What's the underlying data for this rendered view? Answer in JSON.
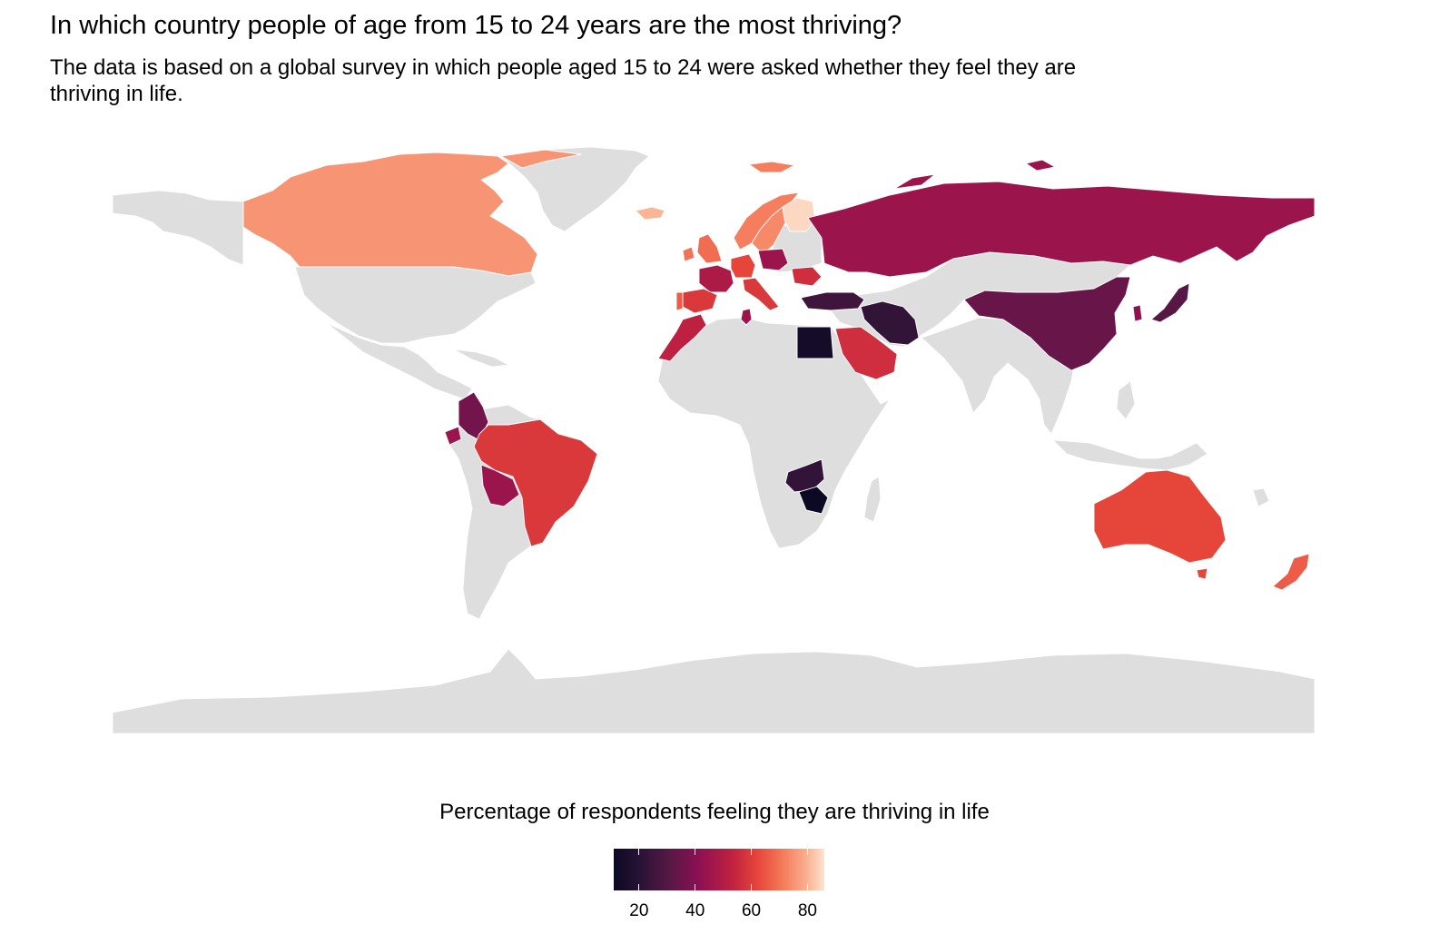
{
  "title": "In which country people of age from 15 to 24 years are the most thriving?",
  "subtitle": "The data is based on a global survey in which people aged 15 to 24 were asked whether they feel they are thriving in life.",
  "legend": {
    "title": "Percentage of respondents feeling they are thriving in life",
    "min": 11,
    "max": 86,
    "ticks": [
      "20",
      "40",
      "60",
      "80"
    ]
  },
  "colors": {
    "no_data": "#dedede",
    "border": "#ffffff",
    "scale": [
      "#0b0924",
      "#2a1336",
      "#561845",
      "#8a1052",
      "#c0213f",
      "#e6443a",
      "#f47a59",
      "#f9ad8d",
      "#fde3cf"
    ]
  },
  "map_data": {
    "type": "choropleth",
    "regions": [
      {
        "name": "Canada",
        "value": 72
      },
      {
        "name": "Greenland",
        "value": 72
      },
      {
        "name": "Iceland",
        "value": 78
      },
      {
        "name": "Svalbard",
        "value": 68
      },
      {
        "name": "Norway",
        "value": 68
      },
      {
        "name": "Sweden",
        "value": 70
      },
      {
        "name": "Finland",
        "value": 84
      },
      {
        "name": "United Kingdom",
        "value": 65
      },
      {
        "name": "Ireland",
        "value": 66
      },
      {
        "name": "France",
        "value": 45
      },
      {
        "name": "Spain",
        "value": 55
      },
      {
        "name": "Portugal",
        "value": 62
      },
      {
        "name": "Germany",
        "value": 58
      },
      {
        "name": "Poland",
        "value": 42
      },
      {
        "name": "Italy",
        "value": 55
      },
      {
        "name": "Romania",
        "value": 52
      },
      {
        "name": "Russia",
        "value": 42
      },
      {
        "name": "Turkey",
        "value": 25
      },
      {
        "name": "Iran",
        "value": 22
      },
      {
        "name": "Saudi Arabia",
        "value": 52
      },
      {
        "name": "Egypt",
        "value": 14
      },
      {
        "name": "Morocco",
        "value": 48
      },
      {
        "name": "Tunisia",
        "value": 42
      },
      {
        "name": "China",
        "value": 33
      },
      {
        "name": "Japan",
        "value": 30
      },
      {
        "name": "South Korea",
        "value": 40
      },
      {
        "name": "Colombia",
        "value": 35
      },
      {
        "name": "Ecuador",
        "value": 42
      },
      {
        "name": "Brazil",
        "value": 55
      },
      {
        "name": "Bolivia",
        "value": 42
      },
      {
        "name": "Zambia",
        "value": 22
      },
      {
        "name": "Zimbabwe",
        "value": 11
      },
      {
        "name": "Australia",
        "value": 58
      },
      {
        "name": "New Zealand",
        "value": 62
      }
    ]
  }
}
